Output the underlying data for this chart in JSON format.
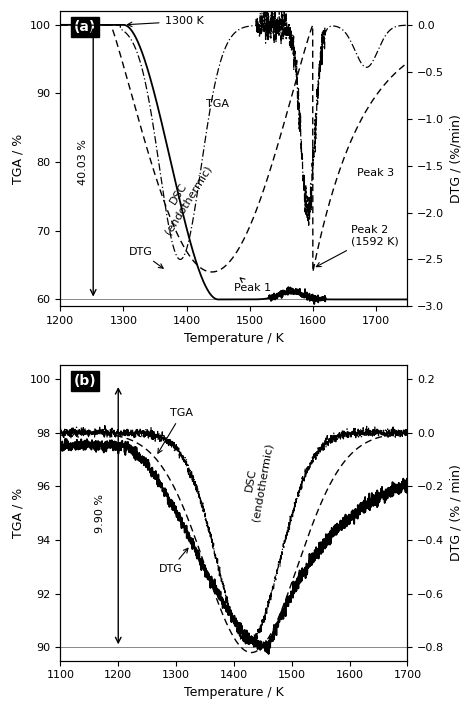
{
  "panel_a": {
    "xlim": [
      1200,
      1750
    ],
    "ylim_left": [
      59,
      102
    ],
    "ylim_right": [
      -3.0,
      0.15
    ],
    "xlabel": "Temperature / K",
    "ylabel_left": "TGA / %",
    "ylabel_right": "DTG / (%/min)",
    "title": "(a)",
    "yticks_left": [
      60,
      70,
      80,
      90,
      100
    ],
    "yticks_right": [
      0.0,
      -0.5,
      -1.0,
      -1.5,
      -2.0,
      -2.5,
      -3.0
    ],
    "xticks": [
      1200,
      1300,
      1400,
      1500,
      1600,
      1700
    ]
  },
  "panel_b": {
    "xlim": [
      1100,
      1700
    ],
    "ylim_left": [
      89.5,
      100.5
    ],
    "ylim_right": [
      -0.85,
      0.25
    ],
    "xlabel": "Temperature / K",
    "ylabel_left": "TGA / %",
    "ylabel_right": "DTG / (% / min)",
    "title": "(b)",
    "yticks_left": [
      90,
      92,
      94,
      96,
      98,
      100
    ],
    "yticks_right": [
      0.2,
      0.0,
      -0.2,
      -0.4,
      -0.6,
      -0.8
    ],
    "xticks": [
      1100,
      1200,
      1300,
      1400,
      1500,
      1600,
      1700
    ]
  },
  "bg_color": "#ffffff",
  "line_color": "#000000"
}
